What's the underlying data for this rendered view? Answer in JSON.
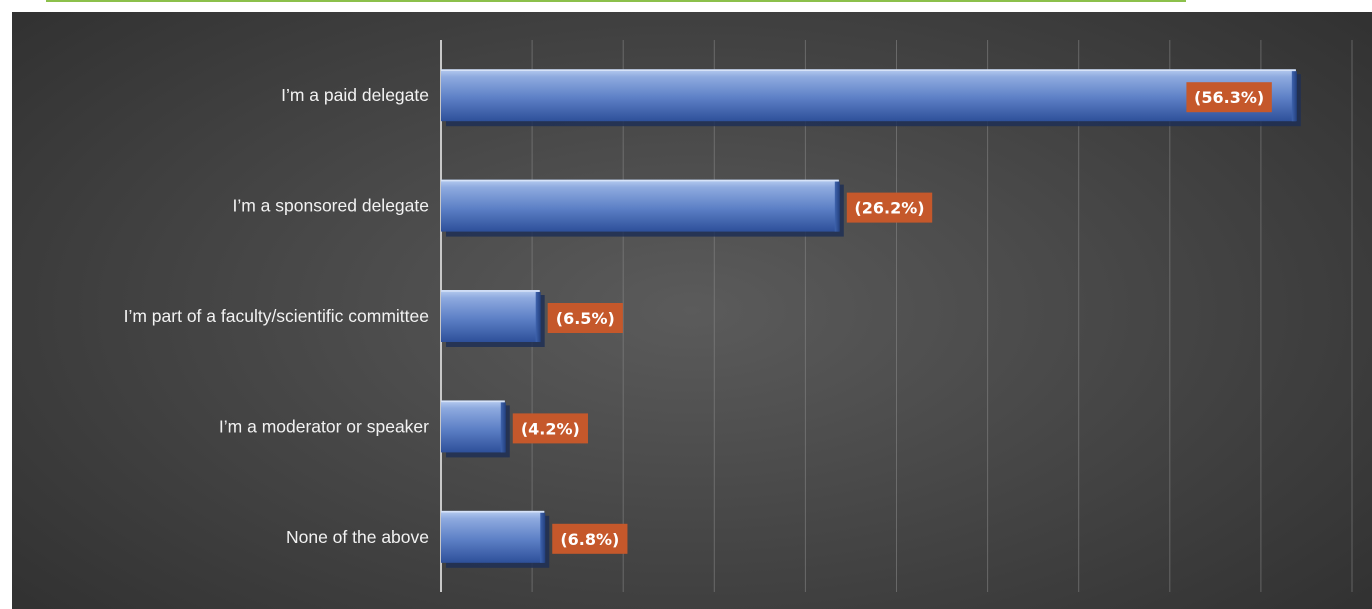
{
  "chart_data": {
    "type": "bar",
    "orientation": "horizontal",
    "categories": [
      "I’m a paid delegate",
      "I’m a sponsored delegate",
      "I’m part of a faculty/scientific committee",
      "I’m a moderator or speaker",
      "None of the above"
    ],
    "values": [
      56.3,
      26.2,
      6.5,
      4.2,
      6.8
    ],
    "data_labels": [
      "(56.3%)",
      "(26.2%)",
      "(6.5%)",
      "(4.2%)",
      "(6.8%)"
    ],
    "title": "",
    "xlabel": "",
    "ylabel": "",
    "xlim": [
      0,
      60
    ],
    "grid": "vertical",
    "grid_interval": 6,
    "legend": "none"
  },
  "colors": {
    "bar_top": "#9db8e6",
    "bar_bottom": "#2f55a0",
    "label_box": "#c5582b",
    "grid": "#8a8a8a",
    "axis": "#c8c8c8",
    "accent_rule": "#8cc04b"
  }
}
